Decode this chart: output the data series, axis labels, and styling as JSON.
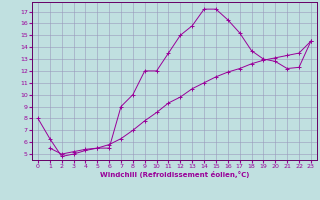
{
  "xlabel": "Windchill (Refroidissement éolien,°C)",
  "bg_color": "#c0e0e0",
  "grid_color": "#9999bb",
  "line_color": "#990099",
  "spine_color": "#660066",
  "x_ticks": [
    0,
    1,
    2,
    3,
    4,
    5,
    6,
    7,
    8,
    9,
    10,
    11,
    12,
    13,
    14,
    15,
    16,
    17,
    18,
    19,
    20,
    21,
    22,
    23
  ],
  "y_ticks": [
    5,
    6,
    7,
    8,
    9,
    10,
    11,
    12,
    13,
    14,
    15,
    16,
    17
  ],
  "ylim": [
    4.5,
    17.8
  ],
  "xlim": [
    -0.5,
    23.5
  ],
  "curve1_x": [
    0,
    1,
    2,
    3,
    4,
    5,
    6,
    7,
    8,
    9,
    10,
    11,
    12,
    13,
    14,
    15,
    16,
    17,
    18,
    19,
    20,
    21,
    22,
    23
  ],
  "curve1_y": [
    8.0,
    6.3,
    4.8,
    5.0,
    5.3,
    5.5,
    5.5,
    9.0,
    10.0,
    12.0,
    12.0,
    13.5,
    15.0,
    15.8,
    17.2,
    17.2,
    16.3,
    15.2,
    13.7,
    13.0,
    12.8,
    12.2,
    12.3,
    14.5
  ],
  "curve2_x": [
    1,
    2,
    3,
    4,
    5,
    6,
    7,
    8,
    9,
    10,
    11,
    12,
    13,
    14,
    15,
    16,
    17,
    18,
    19,
    20,
    21,
    22,
    23
  ],
  "curve2_y": [
    5.5,
    5.0,
    5.2,
    5.4,
    5.5,
    5.8,
    6.3,
    7.0,
    7.8,
    8.5,
    9.3,
    9.8,
    10.5,
    11.0,
    11.5,
    11.9,
    12.2,
    12.6,
    12.9,
    13.1,
    13.3,
    13.5,
    14.5
  ]
}
